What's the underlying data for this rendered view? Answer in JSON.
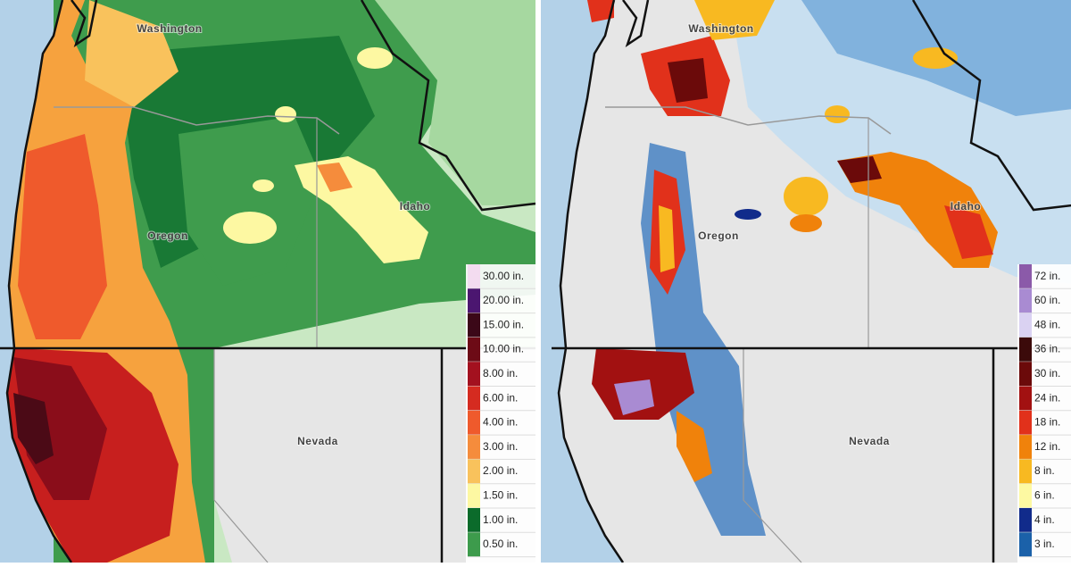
{
  "panels": [
    {
      "states": [
        "Washington",
        "Oregon",
        "Idaho",
        "Nevada"
      ],
      "legend": [
        {
          "label": "30.00 in.",
          "color": "#f3dcf0"
        },
        {
          "label": "20.00 in.",
          "color": "#4b1670"
        },
        {
          "label": "15.00 in.",
          "color": "#3b0818"
        },
        {
          "label": "10.00 in.",
          "color": "#6d0b16"
        },
        {
          "label": "8.00 in.",
          "color": "#a3111f"
        },
        {
          "label": "6.00 in.",
          "color": "#d52b20"
        },
        {
          "label": "4.00 in.",
          "color": "#ef5a2c"
        },
        {
          "label": "3.00 in.",
          "color": "#f58c3c"
        },
        {
          "label": "2.00 in.",
          "color": "#f9c25c"
        },
        {
          "label": "1.50 in.",
          "color": "#fdf8a2"
        },
        {
          "label": "1.00 in.",
          "color": "#0b6b2b"
        },
        {
          "label": "0.50 in.",
          "color": "#3d9b4c"
        }
      ]
    },
    {
      "states": [
        "Washington",
        "Oregon",
        "Idaho",
        "Nevada"
      ],
      "legend": [
        {
          "label": "72 in.",
          "color": "#8b5aa9"
        },
        {
          "label": "60 in.",
          "color": "#a98bd2"
        },
        {
          "label": "48 in.",
          "color": "#dad2f2"
        },
        {
          "label": "36 in.",
          "color": "#3b0a0a"
        },
        {
          "label": "30 in.",
          "color": "#6b0a0a"
        },
        {
          "label": "24 in.",
          "color": "#a21111"
        },
        {
          "label": "18 in.",
          "color": "#e1311b"
        },
        {
          "label": "12 in.",
          "color": "#f0820b"
        },
        {
          "label": "8 in.",
          "color": "#f8b921"
        },
        {
          "label": "6 in.",
          "color": "#fdf9a2"
        },
        {
          "label": "4 in.",
          "color": "#112b8b"
        },
        {
          "label": "3 in.",
          "color": "#1b61a9"
        }
      ]
    }
  ]
}
